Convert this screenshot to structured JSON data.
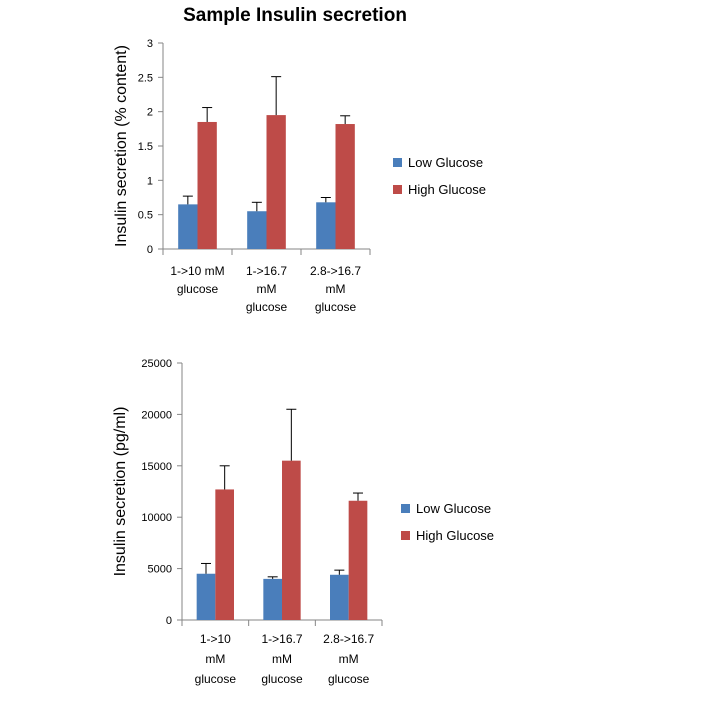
{
  "chart_data": [
    {
      "type": "bar",
      "title": "Sample Insulin secretion",
      "ylabel": "Insulin secretion (% content)",
      "xlabel": "",
      "ylim": [
        0,
        3
      ],
      "yticks": [
        "0",
        "0.5",
        "1",
        "1.5",
        "2",
        "2.5",
        "3"
      ],
      "categories": [
        [
          "1->10 mM",
          "glucose"
        ],
        [
          "1->16.7",
          "mM",
          "glucose"
        ],
        [
          "2.8->16.7",
          "mM",
          "glucose"
        ]
      ],
      "series": [
        {
          "name": "Low Glucose",
          "color": "#4a7ebb",
          "values": [
            0.65,
            0.55,
            0.68
          ],
          "errors": [
            0.12,
            0.13,
            0.07
          ]
        },
        {
          "name": "High Glucose",
          "color": "#be4b48",
          "values": [
            1.85,
            1.95,
            1.82
          ],
          "errors": [
            0.21,
            0.56,
            0.12
          ]
        }
      ],
      "legend": "right",
      "grid": false
    },
    {
      "type": "bar",
      "ylabel": "Insulin secretion (pg/ml)",
      "xlabel": "",
      "ylim": [
        0,
        25000
      ],
      "yticks": [
        "0",
        "5000",
        "10000",
        "15000",
        "20000",
        "25000"
      ],
      "categories": [
        [
          "1->10",
          "mM",
          "glucose"
        ],
        [
          "1->16.7",
          "mM",
          "glucose"
        ],
        [
          "2.8->16.7",
          "mM",
          "glucose"
        ]
      ],
      "series": [
        {
          "name": "Low Glucose",
          "color": "#4a7ebb",
          "values": [
            4500,
            4000,
            4400
          ],
          "errors": [
            1000,
            200,
            450
          ]
        },
        {
          "name": "High Glucose",
          "color": "#be4b48",
          "values": [
            12700,
            15500,
            11600
          ],
          "errors": [
            2300,
            5000,
            750
          ]
        }
      ],
      "legend": "right",
      "grid": false
    }
  ]
}
